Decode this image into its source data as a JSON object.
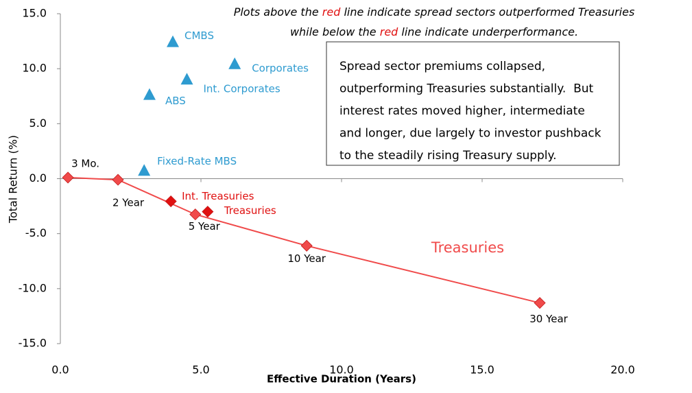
{
  "chart_data": {
    "type": "scatter",
    "xlabel": "Effective Duration (Years)",
    "ylabel": "Total Return (%)",
    "xlim": [
      0,
      20
    ],
    "ylim": [
      -15,
      15
    ],
    "xticks": [
      {
        "value": 0,
        "label": "0.0"
      },
      {
        "value": 5,
        "label": "5.0"
      },
      {
        "value": 10,
        "label": "10.0"
      },
      {
        "value": 15,
        "label": "15.0"
      },
      {
        "value": 20,
        "label": "20.0"
      }
    ],
    "yticks": [
      {
        "value": -15,
        "label": "-15.0"
      },
      {
        "value": -10,
        "label": "-10.0"
      },
      {
        "value": -5,
        "label": "-5.0"
      },
      {
        "value": 0,
        "label": "0.0"
      },
      {
        "value": 5,
        "label": "5.0"
      },
      {
        "value": 10,
        "label": "10.0"
      },
      {
        "value": 15,
        "label": "15.0"
      }
    ],
    "series": [
      {
        "name": "Treasuries",
        "color": "#f04a4a",
        "marker": "diamond",
        "line": true,
        "x": [
          0.27,
          2.05,
          4.8,
          8.76,
          17.05
        ],
        "values": [
          0.1,
          -0.1,
          -3.25,
          -6.1,
          -11.3
        ],
        "point_labels": [
          "3 Mo.",
          "2 Year",
          "5 Year",
          "10 Year",
          "30 Year"
        ]
      },
      {
        "color": "#2e9bd0",
        "marker": "triangle",
        "line": false,
        "x": [
          4.0,
          6.2,
          4.5,
          3.17,
          2.98
        ],
        "values": [
          12.4,
          10.4,
          9.0,
          7.6,
          0.7
        ],
        "point_labels": [
          "CMBS",
          "Corporates",
          "Int. Corporates",
          "ABS",
          "Fixed-Rate MBS"
        ]
      },
      {
        "color": "#e01010",
        "marker": "diamond",
        "line": false,
        "x": [
          3.93,
          5.24
        ],
        "values": [
          -2.06,
          -3.0
        ],
        "point_labels": [
          "Int. Treasuries",
          "Treasuries"
        ]
      }
    ],
    "annotation": {
      "lines": [
        [
          {
            "text": "Plots above the "
          },
          {
            "text": "red",
            "color": "#e01010"
          },
          {
            "text": " line indicate spread sectors outperformed Treasuries"
          }
        ],
        [
          {
            "text": "while below the "
          },
          {
            "text": "red",
            "color": "#e01010"
          },
          {
            "text": " line indicate underperformance."
          }
        ]
      ]
    },
    "box_text": [
      "Spread sector premiums collapsed,",
      "outperforming Treasuries substantially.  But",
      "interest rates moved higher, intermediate",
      "and longer, due largely to investor pushback",
      "to the steadily rising Treasury supply."
    ]
  }
}
